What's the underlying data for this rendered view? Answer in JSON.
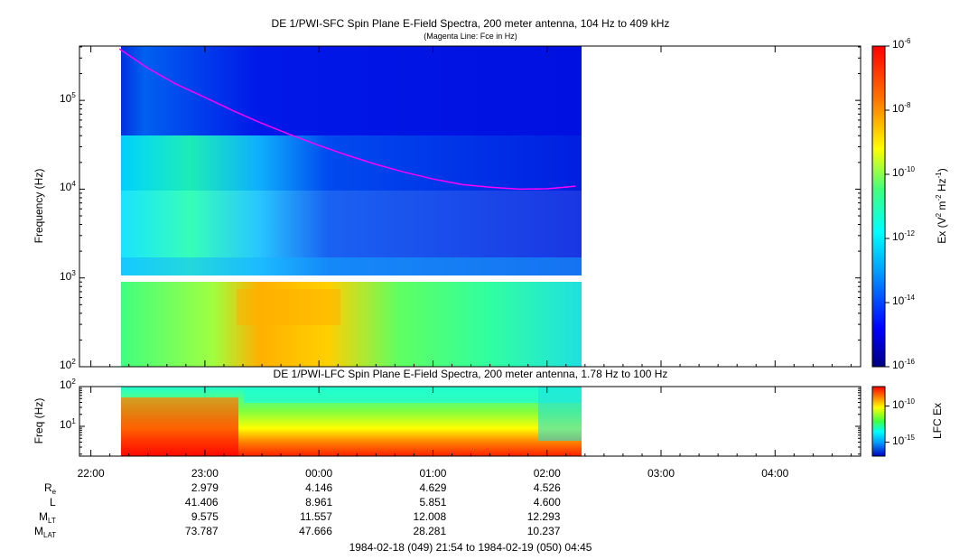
{
  "header": {
    "top_title": "DE 1/PWI-SFC  Spin Plane E-Field Spectra, 200 meter antenna, 104 Hz to 409 kHz",
    "top_subtitle": "(Magenta Line: Fce in Hz)",
    "bottom_title": "DE 1/PWI-LFC  Spin Plane E-Field Spectra, 200 meter antenna, 1.78 Hz to 100 Hz",
    "footer_range": "1984-02-18 (049) 21:54 to 1984-02-19 (050) 04:45"
  },
  "chart_data": [
    {
      "type": "heatmap",
      "name": "sfc",
      "ylabel": "Frequency (Hz)",
      "yscale": "log",
      "ylim": [
        100,
        409000
      ],
      "yticks": [
        {
          "base": "10",
          "exp": "2"
        },
        {
          "base": "10",
          "exp": "3"
        },
        {
          "base": "10",
          "exp": "4"
        },
        {
          "base": "10",
          "exp": "5"
        }
      ],
      "colorbar": {
        "label_base": "Ex (V",
        "label_sup1": "2",
        "label_mid": " m",
        "label_sup2": "-2",
        "label_mid2": " Hz",
        "label_sup3": "-1",
        "label_end": ")",
        "scale": "log",
        "range": [
          1e-16,
          1e-06
        ],
        "ticks": [
          {
            "base": "10",
            "exp": "-6"
          },
          {
            "base": "10",
            "exp": "-8"
          },
          {
            "base": "10",
            "exp": "-10"
          },
          {
            "base": "10",
            "exp": "-12"
          },
          {
            "base": "10",
            "exp": "-14"
          },
          {
            "base": "10",
            "exp": "-16"
          }
        ]
      },
      "data_gap_hz": [
        900,
        1000
      ],
      "fce_line": {
        "color": "#ff00ff",
        "time_hours": [
          22.25,
          22.5,
          22.75,
          23.0,
          23.25,
          23.5,
          23.75,
          24.0,
          24.25,
          24.5,
          24.75,
          25.0,
          25.25,
          25.5,
          25.75,
          26.0,
          26.25
        ],
        "hz": [
          380000,
          230000,
          152000,
          108000,
          76000,
          55000,
          41000,
          31000,
          24000,
          19000,
          15500,
          13000,
          11300,
          10500,
          10000,
          10100,
          10800
        ]
      }
    },
    {
      "type": "heatmap",
      "name": "lfc",
      "ylabel": "Freq (Hz)",
      "yscale": "log",
      "ylim": [
        1.78,
        100
      ],
      "yticks": [
        {
          "base": "10",
          "exp": "1"
        },
        {
          "base": "10",
          "exp": "2"
        }
      ],
      "colorbar": {
        "label": "LFC Ex",
        "scale": "log",
        "ticks": [
          {
            "base": "10",
            "exp": "-10"
          },
          {
            "base": "10",
            "exp": "-15"
          }
        ]
      }
    }
  ],
  "time_axis": {
    "start_hours": 21.9,
    "end_hours": 28.75,
    "data_start_hours": 22.25,
    "data_end_hours": 26.28,
    "ticks": [
      {
        "label": "22:00",
        "hours": 22
      },
      {
        "label": "23:00",
        "hours": 23
      },
      {
        "label": "00:00",
        "hours": 24
      },
      {
        "label": "01:00",
        "hours": 25
      },
      {
        "label": "02:00",
        "hours": 26
      },
      {
        "label": "03:00",
        "hours": 27
      },
      {
        "label": "04:00",
        "hours": 28
      }
    ]
  },
  "ephemeris": {
    "rows": [
      {
        "label": "R",
        "sub": "e",
        "values": [
          "2.979",
          "4.146",
          "4.629",
          "4.526"
        ]
      },
      {
        "label": "L",
        "sub": "",
        "values": [
          "41.406",
          "8.961",
          "5.851",
          "4.600"
        ]
      },
      {
        "label": "M",
        "sub": "LT",
        "values": [
          "9.575",
          "11.557",
          "12.008",
          "12.293"
        ]
      },
      {
        "label": "M",
        "sub": "LAT",
        "values": [
          "73.787",
          "47.666",
          "28.281",
          "10.237"
        ]
      }
    ]
  }
}
